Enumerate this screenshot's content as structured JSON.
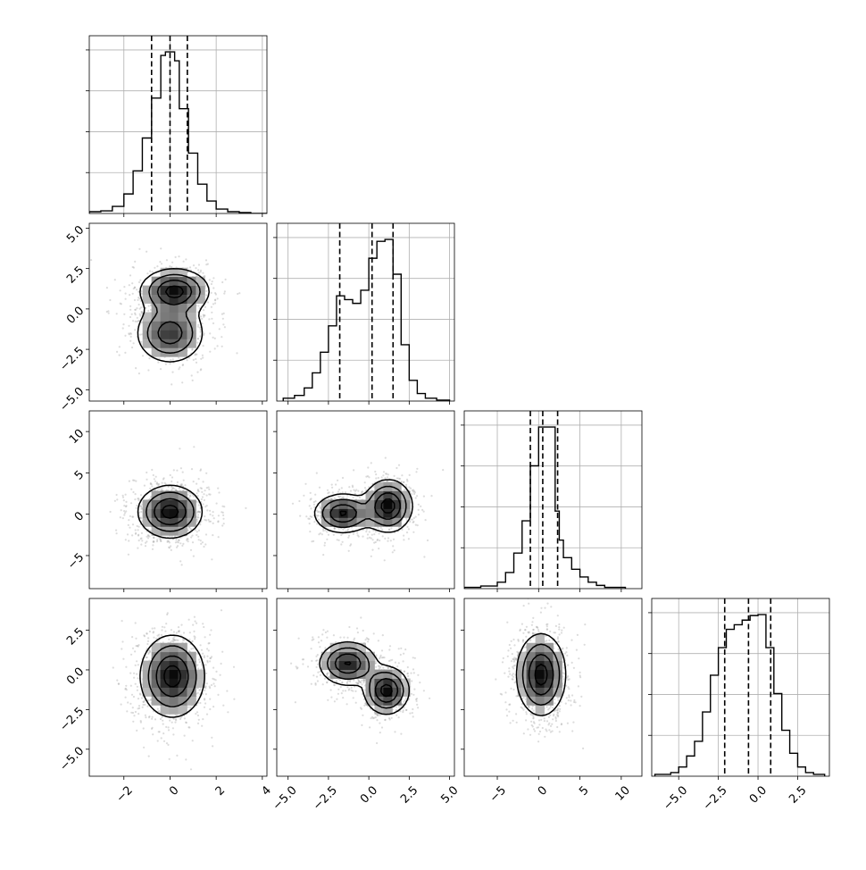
{
  "chart_data": {
    "type": "corner",
    "parameters": [
      {
        "range": [
          -3.5,
          4.2
        ],
        "ticks": [
          -2,
          0,
          2,
          4
        ],
        "tick_labels": [
          "−2",
          "0",
          "2",
          "4"
        ],
        "quantiles": [
          -0.8,
          0.0,
          0.75
        ],
        "hist_edges": [
          -3.5,
          -3.0,
          -2.5,
          -2.0,
          -1.6,
          -1.2,
          -0.8,
          -0.4,
          -0.2,
          0.2,
          0.4,
          0.8,
          1.2,
          1.6,
          2.0,
          2.5,
          3.0,
          3.5,
          4.2
        ],
        "hist_counts": [
          2,
          3,
          8,
          22,
          48,
          85,
          130,
          178,
          182,
          172,
          118,
          68,
          33,
          14,
          5,
          2,
          1,
          0
        ]
      },
      {
        "range": [
          -5.7,
          5.3
        ],
        "ticks": [
          -5.0,
          -2.5,
          0.0,
          2.5,
          5.0
        ],
        "tick_labels": [
          "−5.0",
          "−2.5",
          "0.0",
          "2.5",
          "5.0"
        ],
        "quantiles": [
          -1.8,
          0.2,
          1.5
        ],
        "hist_edges": [
          -5.3,
          -4.6,
          -4.0,
          -3.5,
          -3.0,
          -2.5,
          -2.0,
          -1.5,
          -1.0,
          -0.5,
          0.0,
          0.5,
          1.0,
          1.5,
          2.0,
          2.5,
          3.0,
          3.5,
          4.2,
          5.0
        ],
        "hist_counts": [
          3,
          6,
          14,
          30,
          52,
          80,
          112,
          108,
          104,
          118,
          152,
          170,
          172,
          135,
          60,
          22,
          8,
          3,
          1
        ]
      },
      {
        "range": [
          -9,
          12.5
        ],
        "ticks": [
          -5,
          0,
          5,
          10
        ],
        "tick_labels": [
          "−5",
          "0",
          "5",
          "10"
        ],
        "quantiles": [
          -1.0,
          0.5,
          2.3
        ],
        "hist_edges": [
          -9.0,
          -7.0,
          -5.0,
          -4.0,
          -3.0,
          -2.0,
          -1.0,
          0.0,
          1.0,
          2.0,
          2.5,
          3.0,
          4.0,
          5.0,
          6.0,
          7.0,
          8.0,
          10.5
        ],
        "hist_counts": [
          2,
          4,
          10,
          25,
          55,
          105,
          190,
          250,
          250,
          120,
          75,
          48,
          30,
          18,
          10,
          5,
          2
        ]
      },
      {
        "range": [
          -6.7,
          4.5
        ],
        "ticks": [
          -5.0,
          -2.5,
          0.0,
          2.5
        ],
        "tick_labels": [
          "−5.0",
          "−2.5",
          "0.0",
          "2.5"
        ],
        "quantiles": [
          -2.1,
          -0.6,
          0.8
        ],
        "hist_edges": [
          -6.5,
          -5.5,
          -5.0,
          -4.5,
          -4.0,
          -3.5,
          -3.0,
          -2.5,
          -2.0,
          -1.5,
          -1.0,
          -0.5,
          0.0,
          0.5,
          1.0,
          1.5,
          2.0,
          2.5,
          3.0,
          3.5,
          4.2
        ],
        "hist_counts": [
          2,
          4,
          10,
          22,
          38,
          70,
          110,
          140,
          160,
          165,
          170,
          175,
          176,
          140,
          90,
          50,
          25,
          10,
          4,
          2
        ]
      }
    ],
    "pairs": [
      {
        "row": 1,
        "col": 0,
        "yticks": [
          -5.0,
          -2.5,
          0.0,
          2.5,
          5.0
        ],
        "ytick_labels": [
          "−5.0",
          "−2.5",
          "0.0",
          "2.5",
          "5.0"
        ],
        "peaks": [
          {
            "x": 0.2,
            "y": 1.1,
            "sx": 0.75,
            "sy": 0.7,
            "w": 1.0
          },
          {
            "x": 0.0,
            "y": -1.5,
            "sx": 0.75,
            "sy": 0.95,
            "w": 0.8
          }
        ]
      },
      {
        "row": 2,
        "col": 0,
        "yticks": [
          -5,
          0,
          5,
          10
        ],
        "ytick_labels": [
          "−5",
          "0",
          "5",
          "10"
        ],
        "peaks": [
          {
            "x": 0.0,
            "y": 0.3,
            "sx": 0.7,
            "sy": 1.6,
            "w": 1.0
          }
        ]
      },
      {
        "row": 2,
        "col": 1,
        "peaks": [
          {
            "x": -1.6,
            "y": 0.1,
            "sx": 0.9,
            "sy": 1.2,
            "w": 0.9
          },
          {
            "x": 1.2,
            "y": 1.0,
            "sx": 0.75,
            "sy": 1.6,
            "w": 1.0
          }
        ]
      },
      {
        "row": 3,
        "col": 0,
        "yticks": [
          -5.0,
          -2.5,
          0.0,
          2.5
        ],
        "ytick_labels": [
          "−5.0",
          "−2.5",
          "0.0",
          "2.5"
        ],
        "peaks": [
          {
            "x": 0.1,
            "y": -0.4,
            "sx": 0.7,
            "sy": 1.3,
            "w": 1.0
          }
        ]
      },
      {
        "row": 3,
        "col": 1,
        "peaks": [
          {
            "x": -1.3,
            "y": 0.4,
            "sx": 0.9,
            "sy": 0.7,
            "w": 0.9
          },
          {
            "x": 1.1,
            "y": -1.3,
            "sx": 0.7,
            "sy": 0.75,
            "w": 1.0
          }
        ]
      },
      {
        "row": 3,
        "col": 2,
        "peaks": [
          {
            "x": 0.3,
            "y": -0.3,
            "sx": 1.5,
            "sy": 1.3,
            "w": 1.0
          }
        ]
      }
    ],
    "grid": true
  }
}
